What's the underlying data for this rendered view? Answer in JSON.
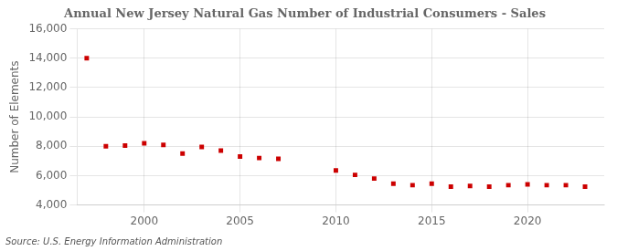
{
  "chart_data": {
    "type": "scatter",
    "title": "Annual New Jersey Natural Gas Number of Industrial Consumers - Sales",
    "ylabel": "Number of Elements",
    "annotation": "Source: U.S. Energy Information Administration",
    "x": [
      1997,
      1998,
      1999,
      2000,
      2001,
      2002,
      2003,
      2004,
      2005,
      2006,
      2007,
      2010,
      2011,
      2012,
      2013,
      2014,
      2015,
      2016,
      2017,
      2018,
      2019,
      2020,
      2021,
      2022,
      2023
    ],
    "values": [
      14000,
      8000,
      8050,
      8200,
      8100,
      7500,
      7950,
      7700,
      7300,
      7200,
      7150,
      6350,
      6050,
      5800,
      5450,
      5350,
      5450,
      5250,
      5300,
      5250,
      5350,
      5400,
      5350,
      5350,
      5250
    ],
    "color": "#cc0000",
    "marker": "square",
    "xlim": [
      1996.5,
      2024
    ],
    "xticks": [
      2000,
      2005,
      2010,
      2015,
      2020
    ],
    "ylim": [
      4000,
      16000
    ],
    "yticks": [
      {
        "value": 4000,
        "label": "4,000"
      },
      {
        "value": 6000,
        "label": "6,000"
      },
      {
        "value": 8000,
        "label": "8,000"
      },
      {
        "value": 10000,
        "label": "10,000"
      },
      {
        "value": 12000,
        "label": "12,000"
      },
      {
        "value": 14000,
        "label": "14,000"
      },
      {
        "value": 16000,
        "label": "16,000"
      }
    ],
    "grid": true
  }
}
